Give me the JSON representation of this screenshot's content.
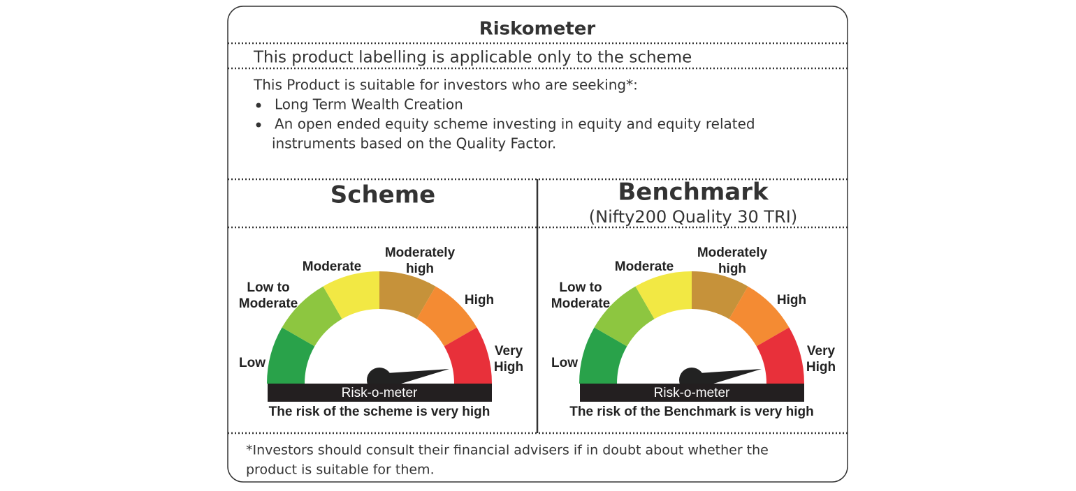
{
  "title": "Riskometer",
  "labelling_note": "This product labelling is applicable only to the scheme",
  "suitability": {
    "intro": "This Product is suitable for investors who are seeking*:",
    "items": [
      {
        "lines": [
          "Long Term Wealth Creation"
        ]
      },
      {
        "lines": [
          "An open ended equity scheme investing in equity and equity related",
          "instruments based on the Quality Factor."
        ]
      }
    ]
  },
  "panels": [
    {
      "heading": "Scheme",
      "gauge": {
        "labels": [
          {
            "lines": [
              "Low"
            ]
          },
          {
            "lines": [
              "Low to",
              "Moderate"
            ]
          },
          {
            "lines": [
              "Moderate"
            ]
          },
          {
            "lines": [
              "Moderately",
              "high"
            ]
          },
          {
            "lines": [
              "High"
            ]
          },
          {
            "lines": [
              "Very",
              "High"
            ]
          }
        ],
        "meter_label": "Risk-o-meter",
        "caption": "The risk of the scheme is very high"
      }
    },
    {
      "heading": "Benchmark",
      "subheading": "(Nifty200 Quality 30 TRI)",
      "gauge": {
        "labels": [
          {
            "lines": [
              "Low"
            ]
          },
          {
            "lines": [
              "Low to",
              "Moderate"
            ]
          },
          {
            "lines": [
              "Moderate"
            ]
          },
          {
            "lines": [
              "Moderately",
              "high"
            ]
          },
          {
            "lines": [
              "High"
            ]
          },
          {
            "lines": [
              "Very",
              "High"
            ]
          }
        ],
        "meter_label": "Risk-o-meter",
        "caption": "The risk of the Benchmark is very high"
      }
    }
  ],
  "footnote": {
    "lines": [
      "*Investors should consult their financial advisers if in doubt about whether the",
      "product is suitable for them."
    ]
  }
}
